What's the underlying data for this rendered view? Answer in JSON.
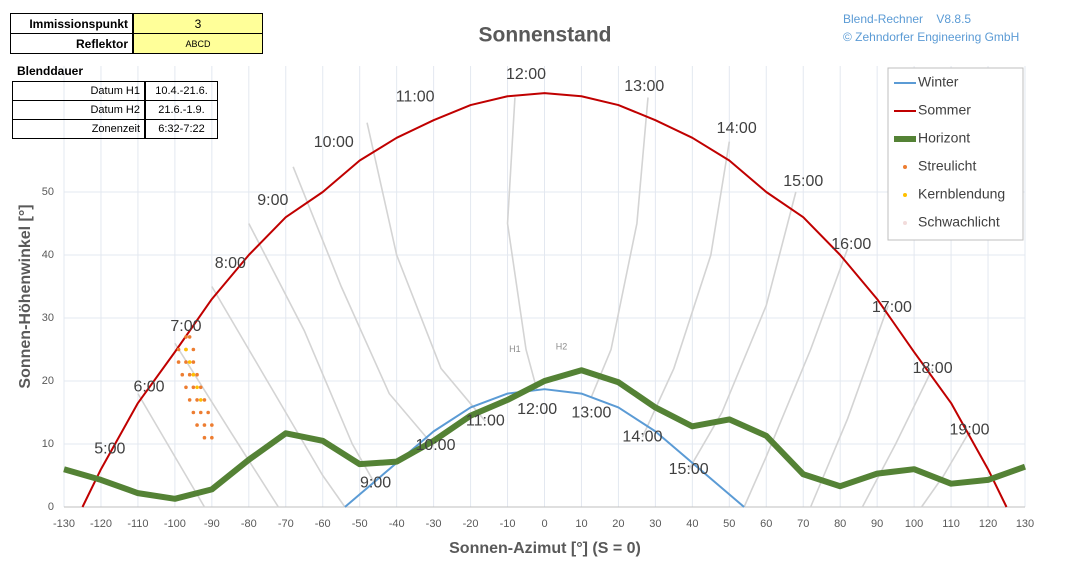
{
  "header": {
    "rows": [
      [
        "Immissionspunkt",
        "3"
      ],
      [
        "Reflektor",
        "ABCD"
      ]
    ],
    "blenddauer": {
      "title": "Blenddauer",
      "rows": [
        [
          "Datum H1",
          "10.4.-21.6."
        ],
        [
          "Datum H2",
          "21.6.-1.9."
        ],
        [
          "Zonenzeit",
          "6:32-7:22"
        ]
      ]
    },
    "version": [
      "Blend-Rechner",
      "V8.8.5",
      "© Zehndorfer Engineering GmbH"
    ]
  },
  "chart_data": {
    "type": "line",
    "title": "Sonnenstand",
    "xlabel": "Sonnen-Azimut [°] (S = 0)",
    "ylabel": "Sonnen-Höhenwinkel [°]",
    "xlim": [
      -130,
      130
    ],
    "xticks": [
      -130,
      -120,
      -110,
      -100,
      -90,
      -80,
      -70,
      -60,
      -50,
      -40,
      -30,
      -20,
      -10,
      0,
      10,
      20,
      30,
      40,
      50,
      60,
      70,
      80,
      90,
      100,
      110,
      120,
      130
    ],
    "ylim": [
      0,
      70
    ],
    "yticks": [
      0,
      10,
      20,
      30,
      40,
      50
    ],
    "grid": true,
    "legend": "upper right",
    "series": [
      {
        "name": "Winter",
        "color": "#5b9bd5",
        "x": [
          -54,
          -50,
          -40,
          -30,
          -20,
          -10,
          0,
          10,
          20,
          30,
          40,
          50,
          54
        ],
        "y": [
          0,
          2,
          7,
          12,
          15.8,
          18,
          18.7,
          18,
          15.8,
          12,
          7,
          2,
          0
        ]
      },
      {
        "name": "Sommer",
        "color": "#c00000",
        "x": [
          -125,
          -120,
          -110,
          -100,
          -90,
          -80,
          -70,
          -60,
          -50,
          -40,
          -30,
          -20,
          -10,
          0,
          10,
          20,
          30,
          40,
          50,
          60,
          70,
          80,
          90,
          100,
          110,
          120,
          125
        ],
        "y": [
          0,
          6,
          16.5,
          24.6,
          33,
          40,
          46,
          50,
          55,
          58.6,
          61.4,
          63.8,
          65.2,
          65.7,
          65.2,
          63.8,
          61.4,
          58.6,
          55,
          50,
          46,
          40,
          33,
          24.6,
          16.5,
          6,
          0
        ]
      },
      {
        "name": "Horizont",
        "color": "#548235",
        "x": [
          -130,
          -120,
          -110,
          -100,
          -90,
          -80,
          -70,
          -60,
          -50,
          -40,
          -30,
          -20,
          -10,
          0,
          10,
          20,
          30,
          40,
          50,
          60,
          70,
          80,
          90,
          100,
          110,
          120,
          130
        ],
        "y": [
          6,
          4.3,
          2.2,
          1.3,
          2.8,
          7.5,
          11.7,
          10.5,
          6.8,
          7.2,
          10.5,
          14.5,
          17,
          20,
          21.7,
          19.8,
          15.8,
          12.8,
          13.9,
          11.3,
          5.2,
          3.3,
          5.3,
          6,
          3.7,
          4.3,
          6.4
        ]
      }
    ],
    "scatter": [
      {
        "name": "Streulicht",
        "color": "#ed7d31",
        "x": [
          -97,
          -96,
          -99,
          -97,
          -95,
          -99,
          -97,
          -95,
          -98,
          -96,
          -94,
          -97,
          -95,
          -93,
          -96,
          -94,
          -92,
          -95,
          -93,
          -91,
          -94,
          -92,
          -90,
          -92,
          -90
        ],
        "y": [
          27,
          27,
          25,
          25,
          25,
          23,
          23,
          23,
          21,
          21,
          21,
          19,
          19,
          19,
          17,
          17,
          17,
          15,
          15,
          15,
          13,
          13,
          13,
          11,
          11
        ]
      },
      {
        "name": "Kernblendung",
        "color": "#ffc000",
        "x": [
          -97,
          -96,
          -95,
          -94,
          -93
        ],
        "y": [
          25,
          23,
          21,
          19,
          17
        ]
      },
      {
        "name": "Schwachlicht",
        "color": "#f2dcdb",
        "x": [],
        "y": []
      }
    ],
    "hour_lines": [
      {
        "x": [
          -110,
          -100,
          -92
        ],
        "y": [
          18,
          8,
          0
        ]
      },
      {
        "x": [
          -100,
          -85,
          -72
        ],
        "y": [
          26,
          12,
          0
        ]
      },
      {
        "x": [
          -90,
          -75,
          -60,
          -54
        ],
        "y": [
          35,
          20,
          5,
          0
        ]
      },
      {
        "x": [
          -80,
          -65,
          -52,
          -46
        ],
        "y": [
          45,
          28,
          10,
          3.8
        ]
      },
      {
        "x": [
          -68,
          -55,
          -42,
          -30
        ],
        "y": [
          54,
          35,
          18,
          9.7
        ]
      },
      {
        "x": [
          -48,
          -40,
          -28,
          -16
        ],
        "y": [
          61,
          40,
          22,
          13.6
        ]
      },
      {
        "x": [
          -8,
          -10,
          -5,
          -2
        ],
        "y": [
          65,
          45,
          25,
          18.5
        ]
      },
      {
        "x": [
          28,
          25,
          18,
          12.7
        ],
        "y": [
          65,
          45,
          25,
          17.5
        ]
      },
      {
        "x": [
          50,
          45,
          35,
          26.5
        ],
        "y": [
          58,
          40,
          22,
          11.1
        ]
      },
      {
        "x": [
          68,
          60,
          48,
          39
        ],
        "y": [
          50,
          32,
          15,
          5.9
        ]
      },
      {
        "x": [
          82,
          72,
          60,
          54
        ],
        "y": [
          41,
          25,
          8,
          0
        ]
      },
      {
        "x": [
          93,
          82,
          72
        ],
        "y": [
          32,
          14,
          0
        ]
      },
      {
        "x": [
          105,
          95,
          86
        ],
        "y": [
          22,
          10,
          0
        ]
      },
      {
        "x": [
          115,
          108,
          102
        ],
        "y": [
          12,
          5,
          0
        ]
      }
    ],
    "hour_labels": [
      {
        "text": "5:00",
        "x": -117.6,
        "y": 9.2
      },
      {
        "text": "6:00",
        "x": -107,
        "y": 19
      },
      {
        "text": "7:00",
        "x": -97,
        "y": 28.6
      },
      {
        "text": "8:00",
        "x": -85,
        "y": 38.6
      },
      {
        "text": "9:00",
        "x": -73.5,
        "y": 48.6
      },
      {
        "text": "10:00",
        "x": -57,
        "y": 57.8
      },
      {
        "text": "11:00",
        "x": -35,
        "y": 65
      },
      {
        "text": "12:00",
        "x": -5,
        "y": 68.6
      },
      {
        "text": "13:00",
        "x": 27,
        "y": 66.7
      },
      {
        "text": "14:00",
        "x": 52,
        "y": 60
      },
      {
        "text": "15:00",
        "x": 70,
        "y": 51.6
      },
      {
        "text": "16:00",
        "x": 83,
        "y": 41.6
      },
      {
        "text": "17:00",
        "x": 94,
        "y": 31.6
      },
      {
        "text": "18:00",
        "x": 105,
        "y": 21.9
      },
      {
        "text": "19:00",
        "x": 115,
        "y": 12.2
      },
      {
        "text": "9:00",
        "x": -45.7,
        "y": 3.8
      },
      {
        "text": "10:00",
        "x": -29.5,
        "y": 9.7
      },
      {
        "text": "11:00",
        "x": -16,
        "y": 13.6
      },
      {
        "text": "12:00",
        "x": -2,
        "y": 15.4
      },
      {
        "text": "13:00",
        "x": 12.7,
        "y": 14.9
      },
      {
        "text": "14:00",
        "x": 26.5,
        "y": 11.1
      },
      {
        "text": "15:00",
        "x": 39,
        "y": 5.9
      }
    ],
    "period_labels": [
      {
        "text": "H1",
        "x": -8,
        "y": 25
      },
      {
        "text": "H2",
        "x": 4.6,
        "y": 25.4
      }
    ]
  }
}
